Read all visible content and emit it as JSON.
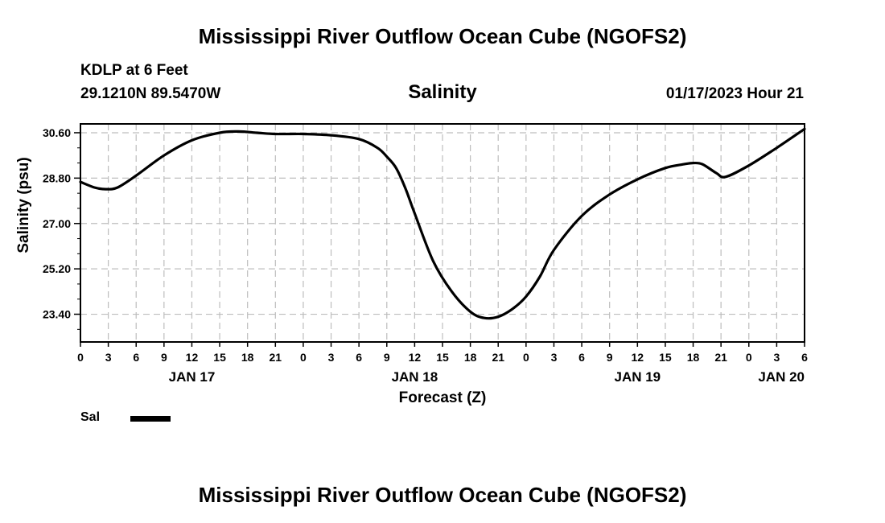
{
  "header": {
    "title": "Mississippi River Outflow Ocean Cube (NGOFS2)",
    "station": "KDLP at 6 Feet",
    "coords": "29.1210N  89.5470W",
    "timestamp": "01/17/2023 Hour 21"
  },
  "footer": {
    "title": "Mississippi River Outflow Ocean Cube (NGOFS2)"
  },
  "legend": {
    "label": "Sal",
    "color": "#000000"
  },
  "chart_data": {
    "type": "line",
    "title": "Salinity",
    "xlabel": "Forecast (Z)",
    "ylabel": "Salinity (psu)",
    "xlim": [
      0,
      78
    ],
    "ylim": [
      22.3,
      30.95
    ],
    "grid": true,
    "x_ticks": [
      {
        "hour": 0,
        "label": "0"
      },
      {
        "hour": 3,
        "label": "3"
      },
      {
        "hour": 6,
        "label": "6"
      },
      {
        "hour": 9,
        "label": "9"
      },
      {
        "hour": 12,
        "label": "12"
      },
      {
        "hour": 15,
        "label": "15"
      },
      {
        "hour": 18,
        "label": "18"
      },
      {
        "hour": 21,
        "label": "21"
      },
      {
        "hour": 24,
        "label": "0"
      },
      {
        "hour": 27,
        "label": "3"
      },
      {
        "hour": 30,
        "label": "6"
      },
      {
        "hour": 33,
        "label": "9"
      },
      {
        "hour": 36,
        "label": "12"
      },
      {
        "hour": 39,
        "label": "15"
      },
      {
        "hour": 42,
        "label": "18"
      },
      {
        "hour": 45,
        "label": "21"
      },
      {
        "hour": 48,
        "label": "0"
      },
      {
        "hour": 51,
        "label": "3"
      },
      {
        "hour": 54,
        "label": "6"
      },
      {
        "hour": 57,
        "label": "9"
      },
      {
        "hour": 60,
        "label": "12"
      },
      {
        "hour": 63,
        "label": "15"
      },
      {
        "hour": 66,
        "label": "18"
      },
      {
        "hour": 69,
        "label": "21"
      },
      {
        "hour": 72,
        "label": "0"
      },
      {
        "hour": 75,
        "label": "3"
      },
      {
        "hour": 78,
        "label": "6"
      }
    ],
    "date_labels": [
      {
        "hour": 12,
        "label": "JAN 17"
      },
      {
        "hour": 36,
        "label": "JAN 18"
      },
      {
        "hour": 60,
        "label": "JAN 19"
      },
      {
        "hour": 78,
        "label": "JAN 20"
      }
    ],
    "y_ticks": [
      {
        "value": 23.4,
        "label": "23.40"
      },
      {
        "value": 25.2,
        "label": "25.20"
      },
      {
        "value": 27.0,
        "label": "27.00"
      },
      {
        "value": 28.8,
        "label": "28.80"
      },
      {
        "value": 30.6,
        "label": "30.60"
      }
    ],
    "series": [
      {
        "name": "Sal",
        "x": [
          0,
          1.5,
          2.7,
          4,
          6,
          9,
          12,
          15,
          17,
          19,
          21,
          24,
          27,
          30,
          32,
          33,
          34,
          35,
          36,
          38,
          40,
          42,
          43.5,
          45,
          46.5,
          48,
          49.5,
          51,
          54,
          57,
          60,
          63,
          65,
          66,
          67,
          68.5,
          69.5,
          72,
          75,
          78
        ],
        "y": [
          28.65,
          28.43,
          28.36,
          28.43,
          28.9,
          29.7,
          30.3,
          30.6,
          30.65,
          30.6,
          30.55,
          30.55,
          30.5,
          30.35,
          30.0,
          29.65,
          29.2,
          28.4,
          27.4,
          25.5,
          24.3,
          23.5,
          23.25,
          23.3,
          23.6,
          24.1,
          24.9,
          25.95,
          27.3,
          28.15,
          28.75,
          29.2,
          29.35,
          29.4,
          29.35,
          29.0,
          28.85,
          29.3,
          30.0,
          30.75
        ]
      }
    ]
  }
}
